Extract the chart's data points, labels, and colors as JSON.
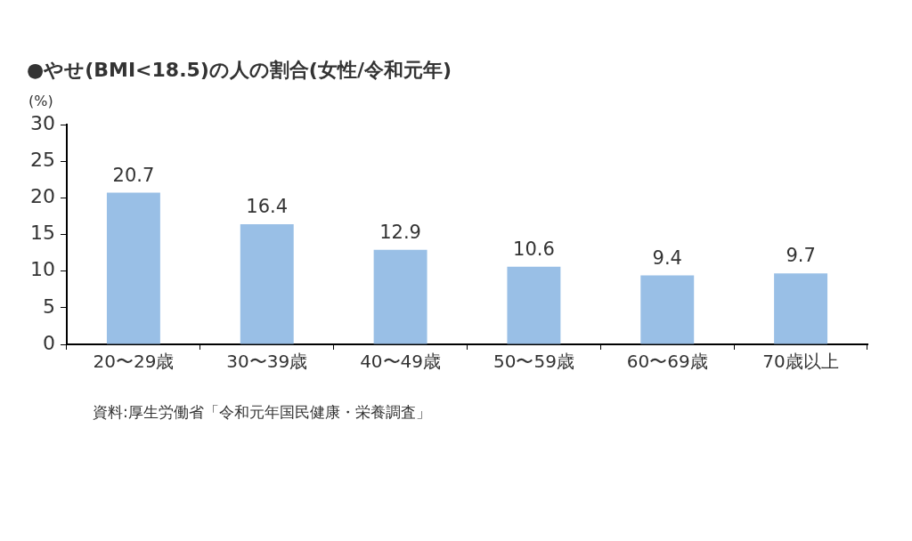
{
  "chart_data": {
    "type": "bar",
    "title": "●やせ(BMI<18.5)の人の割合(女性/令和元年)",
    "ylabel": "(%)",
    "categories": [
      "20〜29歳",
      "30〜39歳",
      "40〜49歳",
      "50〜59歳",
      "60〜69歳",
      "70歳以上"
    ],
    "values": [
      20.7,
      16.4,
      12.9,
      10.6,
      9.4,
      9.7
    ],
    "color": "#99bfe6",
    "ylim": [
      0,
      30
    ],
    "yticks": [
      0,
      5,
      10,
      15,
      20,
      25,
      30
    ],
    "grid": false,
    "legend": false,
    "data_labels": true,
    "annotations": [
      "資料:厚生労働省「令和元年国民健康・栄養調査」"
    ]
  }
}
